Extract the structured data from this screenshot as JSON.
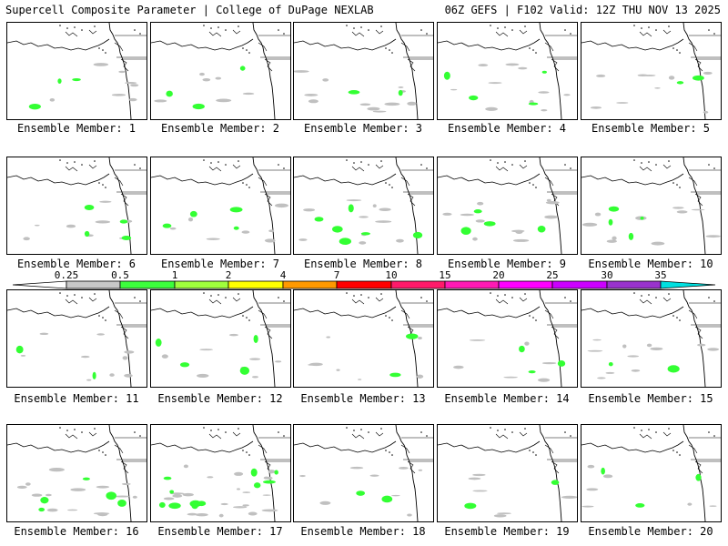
{
  "header": {
    "title_left": "Supercell Composite Parameter | College of DuPage NEXLAB",
    "title_right": "06Z GEFS | F102 Valid: 12Z THU NOV 13 2025"
  },
  "colors": {
    "gray": "#c0c0c0",
    "green": "#33ff33",
    "map_line": "#000000"
  },
  "colorbar": {
    "labels": [
      "0.25",
      "0.5",
      "1",
      "2",
      "4",
      "7",
      "10",
      "15",
      "20",
      "25",
      "30",
      "35"
    ],
    "colors": [
      "#c8c8c8",
      "#3cff3c",
      "#a0ff3c",
      "#ffff00",
      "#ff9900",
      "#ff0000",
      "#ff1a6a",
      "#ff1ab4",
      "#ff00ff",
      "#cc00ff",
      "#9933cc",
      "#00e0e0"
    ]
  },
  "members": [
    {
      "label": "Ensemble Member: 1"
    },
    {
      "label": "Ensemble Member: 2"
    },
    {
      "label": "Ensemble Member: 3"
    },
    {
      "label": "Ensemble Member: 4"
    },
    {
      "label": "Ensemble Member: 5"
    },
    {
      "label": "Ensemble Member: 6"
    },
    {
      "label": "Ensemble Member: 7"
    },
    {
      "label": "Ensemble Member: 8"
    },
    {
      "label": "Ensemble Member: 9"
    },
    {
      "label": "Ensemble Member: 10"
    },
    {
      "label": "Ensemble Member: 11"
    },
    {
      "label": "Ensemble Member: 12"
    },
    {
      "label": "Ensemble Member: 13"
    },
    {
      "label": "Ensemble Member: 14"
    },
    {
      "label": "Ensemble Member: 15"
    },
    {
      "label": "Ensemble Member: 16"
    },
    {
      "label": "Ensemble Member: 17"
    },
    {
      "label": "Ensemble Member: 18"
    },
    {
      "label": "Ensemble Member: 19"
    },
    {
      "label": "Ensemble Member: 20"
    }
  ]
}
